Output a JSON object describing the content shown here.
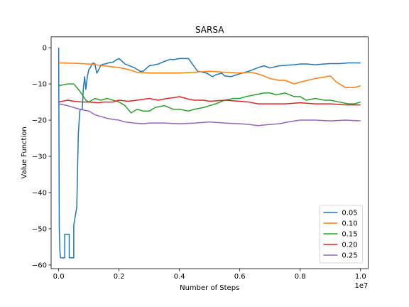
{
  "chart_data": {
    "type": "line",
    "title": "SARSA",
    "xlabel": "Number of Steps",
    "ylabel": "Value Function",
    "x_offset_label": "1e7",
    "xlim": [
      -0.025,
      1.025
    ],
    "ylim": [
      -61,
      3
    ],
    "xticks": [
      0.0,
      0.2,
      0.4,
      0.6,
      0.8,
      1.0
    ],
    "xtick_labels": [
      "0.0",
      "0.2",
      "0.4",
      "0.6",
      "0.8",
      "1.0"
    ],
    "yticks": [
      0,
      -10,
      -20,
      -30,
      -40,
      -50,
      -60
    ],
    "ytick_labels": [
      "0",
      "−10",
      "−20",
      "−30",
      "−40",
      "−50",
      "−60"
    ],
    "legend_position": "lower-right",
    "grid": false,
    "series": [
      {
        "name": "0.05",
        "color": "#1f77b4",
        "x": [
          0.0,
          0.002,
          0.004,
          0.006,
          0.008,
          0.02,
          0.02,
          0.035,
          0.035,
          0.05,
          0.05,
          0.06,
          0.065,
          0.07,
          0.072,
          0.078,
          0.082,
          0.086,
          0.09,
          0.095,
          0.1,
          0.105,
          0.11,
          0.115,
          0.12,
          0.126,
          0.13,
          0.14,
          0.15,
          0.155,
          0.16,
          0.165,
          0.17,
          0.18,
          0.19,
          0.2,
          0.22,
          0.25,
          0.27,
          0.28,
          0.3,
          0.33,
          0.35,
          0.37,
          0.38,
          0.4,
          0.43,
          0.46,
          0.49,
          0.5,
          0.51,
          0.52,
          0.54,
          0.55,
          0.57,
          0.6,
          0.63,
          0.66,
          0.68,
          0.7,
          0.73,
          0.76,
          0.78,
          0.8,
          0.82,
          0.85,
          0.88,
          0.9,
          0.93,
          0.96,
          1.0
        ],
        "y": [
          0,
          -50,
          -56,
          -58,
          -58,
          -58,
          -51.5,
          -51.5,
          -58,
          -58,
          -49,
          -44,
          -24,
          -17.5,
          -17,
          -17,
          -11,
          -8,
          -11.5,
          -8,
          -6,
          -5.5,
          -4.5,
          -4.2,
          -4.5,
          -7,
          -6.5,
          -4.8,
          -4.5,
          -4.5,
          -4.3,
          -4.2,
          -4.1,
          -4.0,
          -3.4,
          -3.0,
          -4.5,
          -5.5,
          -6.5,
          -6.5,
          -5.0,
          -4.5,
          -3.8,
          -3.2,
          -3.3,
          -3.0,
          -3.0,
          -6.5,
          -7.0,
          -7.5,
          -8.0,
          -7.5,
          -7.0,
          -7.8,
          -8.0,
          -7.2,
          -6.5,
          -5.5,
          -5.0,
          -5.6,
          -5.0,
          -4.8,
          -4.7,
          -4.5,
          -4.5,
          -4.7,
          -4.5,
          -4.4,
          -4.4,
          -4.2,
          -4.2
        ]
      },
      {
        "name": "0.10",
        "color": "#ff7f0e",
        "x": [
          0.0,
          0.05,
          0.1,
          0.15,
          0.2,
          0.23,
          0.26,
          0.3,
          0.35,
          0.4,
          0.45,
          0.5,
          0.55,
          0.6,
          0.63,
          0.65,
          0.67,
          0.7,
          0.73,
          0.75,
          0.78,
          0.8,
          0.85,
          0.9,
          0.92,
          0.95,
          0.98,
          1.0
        ],
        "y": [
          -4.2,
          -4.3,
          -4.5,
          -5.0,
          -5.5,
          -6.0,
          -6.8,
          -7.0,
          -7.0,
          -7.0,
          -6.8,
          -6.5,
          -6.8,
          -7.0,
          -6.8,
          -7.0,
          -7.5,
          -8.5,
          -9.0,
          -9.0,
          -10.0,
          -9.5,
          -8.5,
          -7.8,
          -9.5,
          -11.0,
          -11.0,
          -10.5
        ]
      },
      {
        "name": "0.15",
        "color": "#2ca02c",
        "x": [
          0.0,
          0.03,
          0.05,
          0.07,
          0.09,
          0.1,
          0.12,
          0.14,
          0.16,
          0.18,
          0.2,
          0.22,
          0.24,
          0.26,
          0.28,
          0.3,
          0.32,
          0.35,
          0.38,
          0.4,
          0.43,
          0.45,
          0.48,
          0.5,
          0.52,
          0.55,
          0.58,
          0.6,
          0.62,
          0.65,
          0.68,
          0.7,
          0.72,
          0.75,
          0.78,
          0.8,
          0.82,
          0.85,
          0.88,
          0.9,
          0.93,
          0.96,
          0.98,
          1.0
        ],
        "y": [
          -10.5,
          -10.0,
          -10.0,
          -12.0,
          -14.5,
          -15.0,
          -14.0,
          -14.5,
          -14.0,
          -14.5,
          -15.0,
          -16.0,
          -18.0,
          -17.0,
          -17.5,
          -17.5,
          -16.5,
          -16.0,
          -17.0,
          -17.0,
          -17.5,
          -17.0,
          -16.5,
          -16.0,
          -15.5,
          -14.5,
          -14.0,
          -14.0,
          -13.5,
          -13.0,
          -12.5,
          -12.5,
          -13.0,
          -12.5,
          -13.5,
          -13.5,
          -14.5,
          -14.0,
          -14.5,
          -14.5,
          -15.0,
          -15.5,
          -15.5,
          -15.0
        ]
      },
      {
        "name": "0.20",
        "color": "#d62728",
        "x": [
          0.0,
          0.03,
          0.05,
          0.08,
          0.1,
          0.13,
          0.15,
          0.18,
          0.2,
          0.23,
          0.26,
          0.3,
          0.33,
          0.36,
          0.38,
          0.4,
          0.43,
          0.45,
          0.48,
          0.5,
          0.55,
          0.6,
          0.63,
          0.66,
          0.7,
          0.75,
          0.8,
          0.85,
          0.9,
          0.95,
          1.0
        ],
        "y": [
          -15.0,
          -14.5,
          -14.8,
          -15.0,
          -15.0,
          -15.2,
          -15.0,
          -15.0,
          -14.5,
          -14.8,
          -14.5,
          -14.0,
          -14.5,
          -14.0,
          -13.8,
          -13.5,
          -14.2,
          -14.5,
          -14.5,
          -14.8,
          -14.5,
          -14.8,
          -15.0,
          -15.5,
          -15.5,
          -15.5,
          -15.2,
          -15.5,
          -15.5,
          -15.8,
          -15.8
        ]
      },
      {
        "name": "0.25",
        "color": "#9467bd",
        "x": [
          0.0,
          0.03,
          0.05,
          0.07,
          0.1,
          0.12,
          0.14,
          0.16,
          0.18,
          0.2,
          0.22,
          0.25,
          0.28,
          0.3,
          0.35,
          0.4,
          0.45,
          0.5,
          0.55,
          0.6,
          0.63,
          0.66,
          0.7,
          0.73,
          0.76,
          0.8,
          0.85,
          0.9,
          0.95,
          1.0
        ],
        "y": [
          -15.5,
          -16.0,
          -16.5,
          -17.0,
          -17.5,
          -18.5,
          -19.0,
          -19.5,
          -19.8,
          -20.0,
          -20.5,
          -20.8,
          -21.0,
          -20.8,
          -20.8,
          -21.0,
          -20.8,
          -20.5,
          -20.8,
          -21.0,
          -21.2,
          -21.5,
          -21.2,
          -21.0,
          -20.5,
          -20.0,
          -20.0,
          -20.2,
          -20.0,
          -20.2
        ]
      }
    ]
  }
}
